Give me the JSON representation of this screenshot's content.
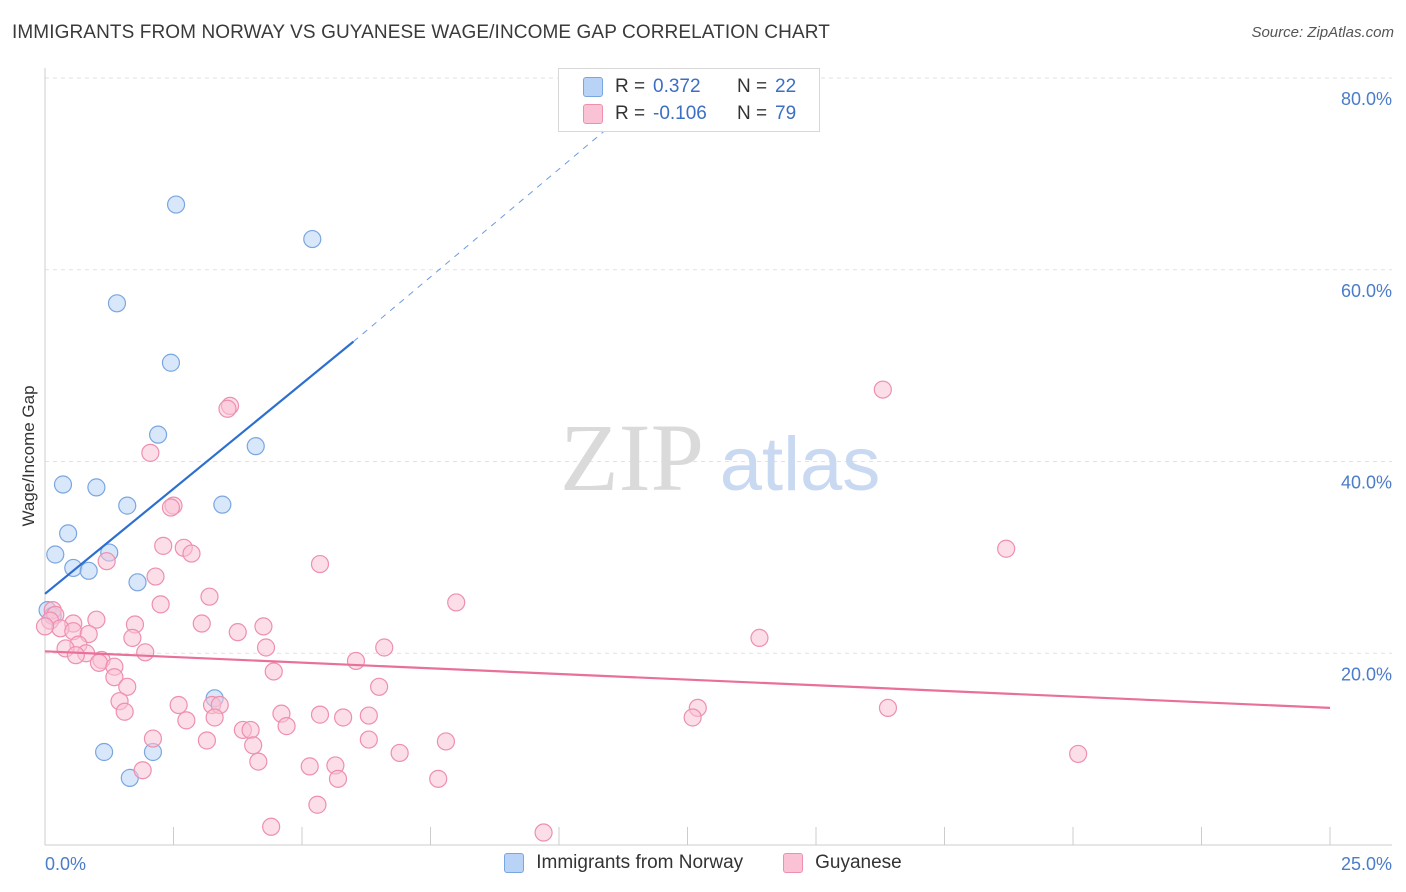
{
  "title": "IMMIGRANTS FROM NORWAY VS GUYANESE WAGE/INCOME GAP CORRELATION CHART",
  "source": "Source: ZipAtlas.com",
  "watermark": {
    "zip": "ZIP",
    "atlas": "atlas"
  },
  "legend": {
    "rows": [
      {
        "r_label": "R =",
        "r_value": "0.372",
        "n_label": "N =",
        "n_value": "22",
        "color": "#b8d3f5",
        "border": "#7aa6e0"
      },
      {
        "r_label": "R =",
        "r_value": "-0.106",
        "n_label": "N =",
        "n_value": "79",
        "color": "#fac3d5",
        "border": "#ee8fae"
      }
    ]
  },
  "bottom_legend": [
    {
      "label": "Immigrants from Norway",
      "color": "#b8d3f5",
      "border": "#7aa6e0"
    },
    {
      "label": "Guyanese",
      "color": "#fac3d5",
      "border": "#ee8fae"
    }
  ],
  "chart_data": {
    "type": "scatter",
    "title": "IMMIGRANTS FROM NORWAY VS GUYANESE WAGE/INCOME GAP CORRELATION CHART",
    "xlabel": "",
    "ylabel": "Wage/Income Gap",
    "xlim": [
      0,
      25
    ],
    "ylim": [
      0,
      80
    ],
    "x_tick_labels": [
      "0.0%",
      "25.0%"
    ],
    "y_ticks": [
      20,
      40,
      60,
      80
    ],
    "y_tick_labels": [
      "20.0%",
      "40.0%",
      "60.0%",
      "80.0%"
    ],
    "grid": true,
    "series": [
      {
        "name": "Immigrants from Norway",
        "color": "#7aa6e0",
        "fill": "#b8d3f5",
        "trend": {
          "x0": 0.0,
          "y0": 26.2,
          "x1": 6.0,
          "y1": 52.5,
          "dash_to_x": 11.0,
          "dash_to_y": 75.0,
          "color": "#2d6fd1"
        },
        "points": [
          [
            2.55,
            66.8
          ],
          [
            5.2,
            63.2
          ],
          [
            1.4,
            56.5
          ],
          [
            2.45,
            50.3
          ],
          [
            2.2,
            42.8
          ],
          [
            4.1,
            41.6
          ],
          [
            0.35,
            37.6
          ],
          [
            1.0,
            37.3
          ],
          [
            1.6,
            35.4
          ],
          [
            3.45,
            35.5
          ],
          [
            0.45,
            32.5
          ],
          [
            0.2,
            30.3
          ],
          [
            1.25,
            30.5
          ],
          [
            0.55,
            28.9
          ],
          [
            0.85,
            28.6
          ],
          [
            1.8,
            27.4
          ],
          [
            0.05,
            24.5
          ],
          [
            3.3,
            15.3
          ],
          [
            1.15,
            9.7
          ],
          [
            2.1,
            9.7
          ],
          [
            1.65,
            7.0
          ],
          [
            0.15,
            23.9
          ]
        ]
      },
      {
        "name": "Guyanese",
        "color": "#ee8fae",
        "fill": "#fac3d5",
        "trend": {
          "x0": 0.0,
          "y0": 20.2,
          "x1": 25.0,
          "y1": 14.3,
          "color": "#e8709b"
        },
        "points": [
          [
            16.3,
            47.5
          ],
          [
            3.6,
            45.8
          ],
          [
            3.55,
            45.5
          ],
          [
            2.05,
            40.9
          ],
          [
            2.5,
            35.4
          ],
          [
            2.45,
            35.2
          ],
          [
            18.7,
            30.9
          ],
          [
            2.3,
            31.2
          ],
          [
            2.7,
            31.0
          ],
          [
            2.85,
            30.4
          ],
          [
            1.2,
            29.6
          ],
          [
            5.35,
            29.3
          ],
          [
            2.15,
            28.0
          ],
          [
            3.2,
            25.9
          ],
          [
            8.0,
            25.3
          ],
          [
            2.25,
            25.1
          ],
          [
            0.15,
            24.5
          ],
          [
            0.2,
            24.0
          ],
          [
            0.1,
            23.4
          ],
          [
            1.0,
            23.5
          ],
          [
            0.55,
            23.1
          ],
          [
            0.3,
            22.6
          ],
          [
            0.55,
            22.3
          ],
          [
            1.75,
            23.0
          ],
          [
            3.05,
            23.1
          ],
          [
            4.25,
            22.8
          ],
          [
            3.75,
            22.2
          ],
          [
            0.85,
            22.0
          ],
          [
            1.7,
            21.6
          ],
          [
            13.9,
            21.6
          ],
          [
            0.65,
            20.9
          ],
          [
            0.4,
            20.5
          ],
          [
            4.3,
            20.6
          ],
          [
            6.6,
            20.6
          ],
          [
            1.95,
            20.1
          ],
          [
            0.8,
            20.0
          ],
          [
            0.6,
            19.8
          ],
          [
            1.1,
            19.3
          ],
          [
            1.05,
            19.0
          ],
          [
            6.05,
            19.2
          ],
          [
            1.35,
            18.6
          ],
          [
            4.45,
            18.1
          ],
          [
            1.35,
            17.5
          ],
          [
            1.6,
            16.5
          ],
          [
            6.5,
            16.5
          ],
          [
            1.45,
            15.0
          ],
          [
            2.6,
            14.6
          ],
          [
            3.25,
            14.6
          ],
          [
            3.4,
            14.6
          ],
          [
            1.55,
            13.9
          ],
          [
            4.6,
            13.7
          ],
          [
            5.35,
            13.6
          ],
          [
            6.3,
            13.5
          ],
          [
            12.7,
            14.3
          ],
          [
            16.4,
            14.3
          ],
          [
            12.6,
            13.3
          ],
          [
            2.75,
            13.0
          ],
          [
            3.3,
            13.3
          ],
          [
            5.8,
            13.3
          ],
          [
            4.7,
            12.4
          ],
          [
            3.85,
            12.0
          ],
          [
            4.0,
            12.0
          ],
          [
            2.1,
            11.1
          ],
          [
            3.15,
            10.9
          ],
          [
            6.3,
            11.0
          ],
          [
            7.8,
            10.8
          ],
          [
            4.05,
            10.4
          ],
          [
            6.9,
            9.6
          ],
          [
            20.1,
            9.5
          ],
          [
            4.15,
            8.7
          ],
          [
            5.15,
            8.2
          ],
          [
            5.65,
            8.3
          ],
          [
            1.9,
            7.8
          ],
          [
            5.7,
            6.9
          ],
          [
            7.65,
            6.9
          ],
          [
            5.3,
            4.2
          ],
          [
            4.4,
            1.9
          ],
          [
            9.7,
            1.3
          ],
          [
            0.0,
            22.8
          ]
        ]
      }
    ]
  }
}
